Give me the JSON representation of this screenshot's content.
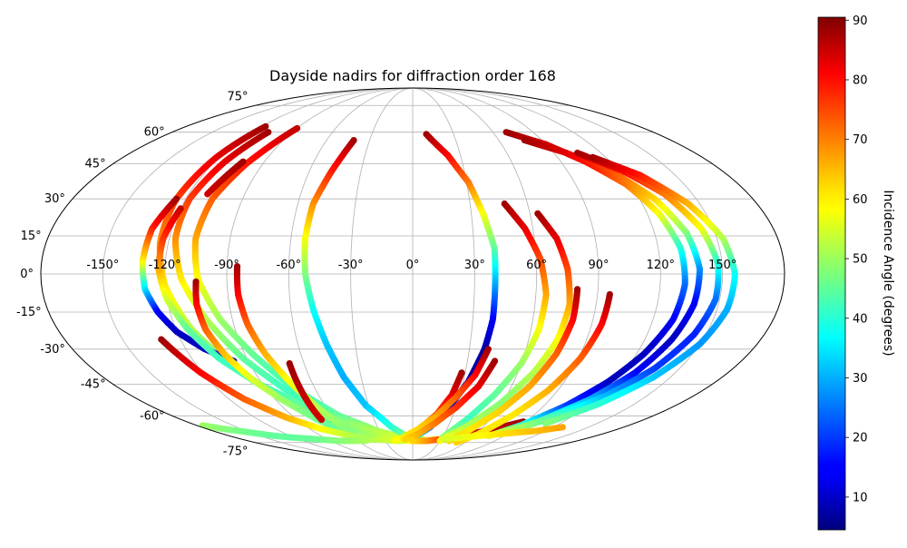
{
  "chart_data": {
    "type": "scatter",
    "projection": "mollweide",
    "title": "Dayside nadirs for diffraction order 168",
    "colorbar": {
      "label": "Incidence Angle (degrees)",
      "colormap": "jet",
      "range": [
        4.5,
        90.5
      ],
      "ticks": [
        "10",
        "20",
        "30",
        "40",
        "50",
        "60",
        "70",
        "80",
        "90"
      ],
      "tick_values": [
        10,
        20,
        30,
        40,
        50,
        60,
        70,
        80,
        90
      ]
    },
    "lon_ticks": {
      "values": [
        -150,
        -120,
        -90,
        -60,
        -30,
        0,
        30,
        60,
        90,
        120,
        150
      ],
      "labels": [
        "-150°",
        "-120°",
        "-90°",
        "-60°",
        "-30°",
        "0°",
        "30°",
        "60°",
        "90°",
        "120°",
        "150°"
      ]
    },
    "lat_ticks": {
      "values": [
        75,
        60,
        45,
        30,
        15,
        0,
        -15,
        -30,
        -45,
        -60,
        -75
      ],
      "labels": [
        "75°",
        "60°",
        "45°",
        "30°",
        "15°",
        "0°",
        "-15°",
        "-30°",
        "-45°",
        "-60°",
        "-75°"
      ]
    },
    "grid": true,
    "series": [
      {
        "points": [
          [
            -117,
            63,
            88
          ],
          [
            -122,
            48,
            82
          ],
          [
            -125,
            30,
            75
          ],
          [
            -124,
            12,
            68
          ],
          [
            -120,
            -5,
            60
          ],
          [
            -112,
            -22,
            52
          ],
          [
            -100,
            -38,
            45
          ],
          [
            -85,
            -52,
            42
          ],
          [
            -65,
            -62,
            45
          ],
          [
            -40,
            -70,
            50
          ],
          [
            -15,
            -73,
            55
          ],
          [
            5,
            -74,
            58
          ]
        ]
      },
      {
        "points": [
          [
            -108,
            60,
            88
          ],
          [
            -114,
            46,
            82
          ],
          [
            -118,
            30,
            75
          ],
          [
            -117,
            14,
            68
          ],
          [
            -112,
            -2,
            60
          ],
          [
            -103,
            -18,
            52
          ],
          [
            -92,
            -34,
            45
          ],
          [
            -78,
            -48,
            42
          ],
          [
            -58,
            -60,
            45
          ],
          [
            -35,
            -68,
            50
          ],
          [
            -12,
            -73,
            55
          ],
          [
            8,
            -74,
            58
          ]
        ]
      },
      {
        "points": [
          [
            -90,
            62,
            85
          ],
          [
            -100,
            45,
            78
          ],
          [
            -106,
            30,
            72
          ],
          [
            -107,
            14,
            66
          ],
          [
            -104,
            -2,
            58
          ],
          [
            -96,
            -18,
            50
          ],
          [
            -85,
            -33,
            45
          ],
          [
            -72,
            -48,
            42
          ],
          [
            -55,
            -60,
            45
          ],
          [
            -32,
            -68,
            50
          ],
          [
            -10,
            -72,
            55
          ],
          [
            10,
            -74,
            58
          ]
        ]
      },
      {
        "points": [
          [
            -103,
            46,
            88
          ],
          [
            -106,
            40,
            86
          ],
          [
            -110,
            32,
            84
          ]
        ]
      },
      {
        "points": [
          [
            -125,
            30,
            88
          ],
          [
            -130,
            18,
            78
          ],
          [
            -131,
            5,
            60
          ],
          [
            -130,
            -6,
            35
          ],
          [
            -126,
            -15,
            15
          ],
          [
            -120,
            -23,
            10
          ],
          [
            -110,
            -30,
            10
          ],
          [
            -98,
            -35,
            12
          ]
        ]
      },
      {
        "points": [
          [
            -120,
            26,
            85
          ],
          [
            -123,
            14,
            76
          ],
          [
            -123,
            2,
            66
          ],
          [
            -120,
            -10,
            55
          ],
          [
            -114,
            -22,
            45
          ],
          [
            -105,
            -34,
            42
          ],
          [
            -92,
            -45,
            42
          ],
          [
            -75,
            -55,
            45
          ],
          [
            -55,
            -63,
            48
          ],
          [
            -32,
            -69,
            52
          ],
          [
            -10,
            -73,
            55
          ]
        ]
      },
      {
        "points": [
          [
            -105,
            -3,
            88
          ],
          [
            -106,
            -12,
            80
          ],
          [
            -105,
            -22,
            72
          ],
          [
            -101,
            -32,
            64
          ],
          [
            -95,
            -42,
            56
          ],
          [
            -86,
            -52,
            50
          ],
          [
            -74,
            -62,
            46
          ],
          [
            -60,
            -70,
            45
          ]
        ]
      },
      {
        "points": [
          [
            -85,
            3,
            88
          ],
          [
            -85,
            -8,
            80
          ],
          [
            -83,
            -20,
            72
          ],
          [
            -79,
            -32,
            65
          ],
          [
            -73,
            -44,
            58
          ],
          [
            -66,
            -56,
            52
          ],
          [
            -58,
            -68,
            48
          ],
          [
            -52,
            -74,
            48
          ]
        ]
      },
      {
        "points": [
          [
            -41,
            56,
            88
          ],
          [
            -47,
            42,
            78
          ],
          [
            -52,
            28,
            68
          ],
          [
            -53,
            14,
            58
          ],
          [
            -52,
            0,
            48
          ],
          [
            -49,
            -14,
            38
          ],
          [
            -45,
            -28,
            32
          ],
          [
            -40,
            -42,
            30
          ],
          [
            -32,
            -55,
            32
          ],
          [
            -18,
            -66,
            40
          ],
          [
            -4,
            -72,
            48
          ],
          [
            10,
            -74,
            55
          ],
          [
            25,
            -73,
            60
          ]
        ]
      },
      {
        "points": [
          [
            -68,
            -36,
            88
          ],
          [
            -69,
            -46,
            86
          ],
          [
            -70,
            -54,
            84
          ],
          [
            -71,
            -62,
            84
          ]
        ]
      },
      {
        "points": [
          [
            -130,
            -26,
            88
          ],
          [
            -121,
            -40,
            80
          ],
          [
            -110,
            -52,
            72
          ],
          [
            -96,
            -61,
            65
          ],
          [
            -80,
            -67,
            58
          ],
          [
            -60,
            -71,
            52
          ],
          [
            -40,
            -73,
            50
          ],
          [
            -15,
            -74,
            52
          ],
          [
            10,
            -73,
            55
          ]
        ]
      },
      {
        "points": [
          [
            -175,
            -65,
            50
          ],
          [
            -165,
            -67,
            48
          ],
          [
            -150,
            -69,
            46
          ],
          [
            -135,
            -71,
            45
          ],
          [
            -120,
            -72,
            45
          ],
          [
            -100,
            -73,
            46
          ],
          [
            -80,
            -74,
            48
          ],
          [
            -60,
            -74,
            50
          ],
          [
            -40,
            -73,
            52
          ],
          [
            -20,
            -73,
            55
          ],
          [
            0,
            -74,
            58
          ]
        ]
      },
      {
        "points": [
          [
            10,
            59,
            88
          ],
          [
            22,
            49,
            80
          ],
          [
            31,
            37,
            70
          ],
          [
            36,
            24,
            58
          ],
          [
            40,
            10,
            45
          ],
          [
            40,
            -4,
            30
          ],
          [
            40,
            -18,
            15
          ],
          [
            38,
            -30,
            8
          ],
          [
            33,
            -44,
            8
          ],
          [
            25,
            -56,
            12
          ],
          [
            15,
            -66,
            25
          ],
          [
            0,
            -73,
            40
          ]
        ]
      },
      {
        "points": [
          [
            28,
            -40,
            88
          ],
          [
            25,
            -50,
            82
          ],
          [
            18,
            -59,
            74
          ],
          [
            8,
            -66,
            66
          ],
          [
            -5,
            -71,
            60
          ],
          [
            -20,
            -74,
            58
          ]
        ]
      },
      {
        "points": [
          [
            40,
            -30,
            88
          ],
          [
            36,
            -41,
            80
          ],
          [
            28,
            -51,
            72
          ],
          [
            18,
            -60,
            66
          ],
          [
            5,
            -67,
            62
          ],
          [
            -10,
            -72,
            60
          ]
        ]
      },
      {
        "points": [
          [
            45,
            -35,
            88
          ],
          [
            40,
            -46,
            82
          ],
          [
            30,
            -56,
            76
          ],
          [
            18,
            -64,
            70
          ],
          [
            5,
            -70,
            65
          ],
          [
            -8,
            -73,
            62
          ]
        ]
      },
      {
        "points": [
          [
            88,
            -63,
            88
          ],
          [
            75,
            -66,
            86
          ],
          [
            60,
            -69,
            84
          ],
          [
            45,
            -71,
            80
          ],
          [
            30,
            -73,
            75
          ],
          [
            15,
            -74,
            68
          ],
          [
            0,
            -74,
            62
          ]
        ]
      },
      {
        "points": [
          [
            70,
            60,
            88
          ],
          [
            90,
            54,
            84
          ],
          [
            105,
            46,
            80
          ],
          [
            118,
            36,
            70
          ],
          [
            126,
            24,
            58
          ],
          [
            131,
            10,
            40
          ],
          [
            132,
            -4,
            25
          ],
          [
            130,
            -18,
            15
          ],
          [
            124,
            -32,
            10
          ],
          [
            116,
            -44,
            10
          ],
          [
            105,
            -55,
            20
          ],
          [
            90,
            -65,
            40
          ],
          [
            75,
            -71,
            55
          ]
        ]
      },
      {
        "points": [
          [
            78,
            56,
            88
          ],
          [
            98,
            50,
            82
          ],
          [
            115,
            42,
            74
          ],
          [
            128,
            30,
            62
          ],
          [
            136,
            16,
            48
          ],
          [
            139,
            2,
            28
          ],
          [
            138,
            -12,
            15
          ],
          [
            134,
            -26,
            10
          ],
          [
            127,
            -40,
            15
          ],
          [
            116,
            -52,
            30
          ],
          [
            100,
            -63,
            45
          ],
          [
            80,
            -70,
            55
          ]
        ]
      },
      {
        "points": [
          [
            105,
            50,
            88
          ],
          [
            122,
            42,
            80
          ],
          [
            135,
            32,
            70
          ],
          [
            144,
            18,
            58
          ],
          [
            148,
            4,
            40
          ],
          [
            148,
            -10,
            25
          ],
          [
            144,
            -24,
            18
          ],
          [
            136,
            -38,
            20
          ],
          [
            124,
            -50,
            30
          ],
          [
            108,
            -60,
            42
          ],
          [
            90,
            -68,
            52
          ]
        ]
      },
      {
        "points": [
          [
            112,
            48,
            88
          ],
          [
            130,
            40,
            78
          ],
          [
            144,
            28,
            65
          ],
          [
            153,
            14,
            52
          ],
          [
            156,
            0,
            38
          ],
          [
            155,
            -14,
            30
          ],
          [
            150,
            -28,
            28
          ],
          [
            140,
            -42,
            32
          ],
          [
            126,
            -54,
            40
          ],
          [
            108,
            -64,
            48
          ]
        ]
      },
      {
        "points": [
          [
            48,
            28,
            88
          ],
          [
            56,
            18,
            82
          ],
          [
            62,
            6,
            74
          ],
          [
            65,
            -8,
            66
          ],
          [
            64,
            -22,
            58
          ],
          [
            60,
            -36,
            50
          ],
          [
            52,
            -50,
            45
          ],
          [
            42,
            -62,
            42
          ],
          [
            30,
            -72,
            50
          ]
        ]
      },
      {
        "points": [
          [
            64,
            24,
            88
          ],
          [
            71,
            14,
            82
          ],
          [
            75,
            2,
            74
          ],
          [
            77,
            -12,
            66
          ],
          [
            75,
            -26,
            58
          ],
          [
            69,
            -40,
            52
          ],
          [
            59,
            -54,
            48
          ],
          [
            45,
            -66,
            52
          ],
          [
            30,
            -74,
            58
          ]
        ]
      },
      {
        "points": [
          [
            80,
            -6,
            88
          ],
          [
            80,
            -18,
            80
          ],
          [
            77,
            -32,
            72
          ],
          [
            71,
            -46,
            66
          ],
          [
            62,
            -58,
            62
          ],
          [
            50,
            -68,
            60
          ],
          [
            40,
            -74,
            62
          ]
        ]
      },
      {
        "points": [
          [
            96,
            -8,
            88
          ],
          [
            95,
            -20,
            80
          ],
          [
            91,
            -34,
            72
          ],
          [
            84,
            -48,
            65
          ],
          [
            74,
            -60,
            60
          ],
          [
            62,
            -70,
            60
          ],
          [
            50,
            -75,
            62
          ]
        ]
      },
      {
        "points": [
          [
            32,
            -73,
            55
          ],
          [
            48,
            -72,
            56
          ],
          [
            64,
            -71,
            58
          ],
          [
            80,
            -70,
            60
          ],
          [
            96,
            -69,
            62
          ],
          [
            112,
            -68,
            64
          ],
          [
            128,
            -66,
            66
          ]
        ]
      }
    ]
  }
}
